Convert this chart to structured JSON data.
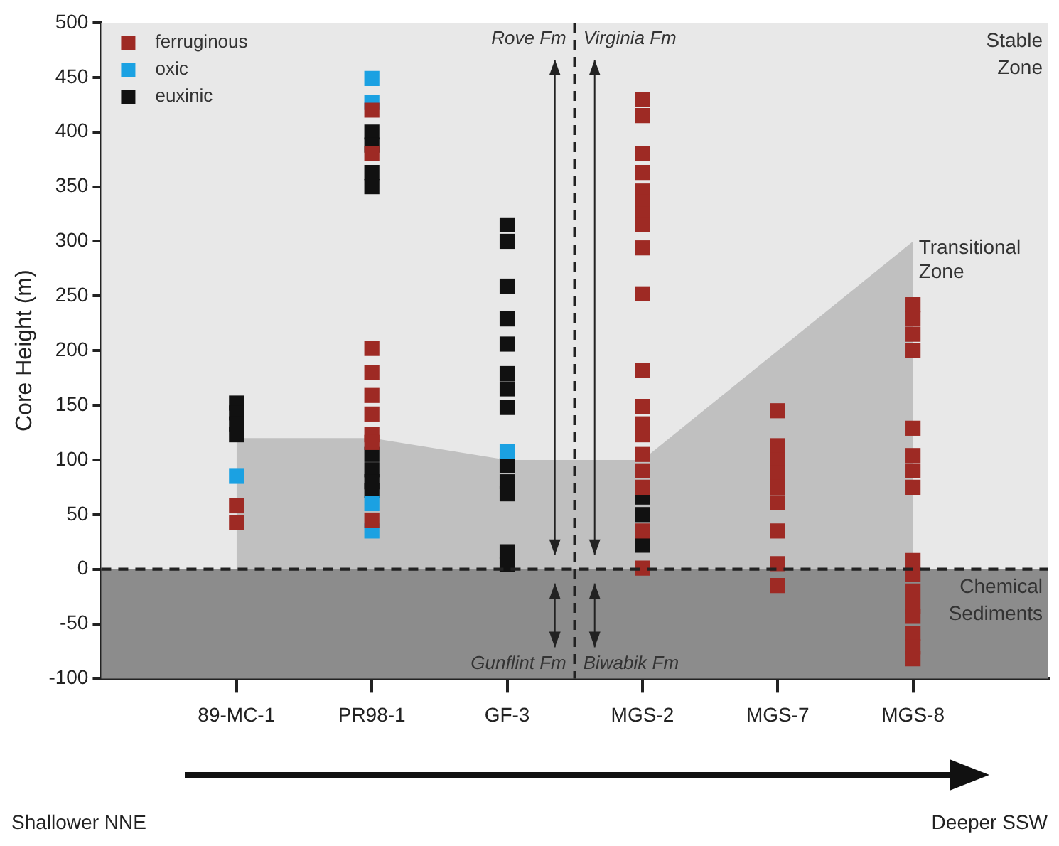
{
  "chart_data": {
    "type": "scatter",
    "ylabel": "Core Height (m)",
    "categories": [
      "89-MC-1",
      "PR98-1",
      "GF-3",
      "MGS-2",
      "MGS-7",
      "MGS-8"
    ],
    "ylim": [
      -100,
      500
    ],
    "yticks": [
      -100,
      -50,
      0,
      50,
      100,
      150,
      200,
      250,
      300,
      350,
      400,
      450,
      500
    ],
    "grid": false,
    "legend": "top left",
    "series": [
      {
        "name": "Transitional Zone",
        "type": "area",
        "color": "#c0c0c0",
        "values": [
          120,
          120,
          100,
          100,
          200,
          300
        ]
      },
      {
        "name": "ferruginous",
        "color": "#9e2a24",
        "marker": "square",
        "x": [
          "89-MC-1",
          "89-MC-1",
          "PR98-1",
          "PR98-1",
          "PR98-1",
          "PR98-1",
          "PR98-1",
          "PR98-1",
          "PR98-1",
          "PR98-1",
          "PR98-1",
          "MGS-2",
          "MGS-2",
          "MGS-2",
          "MGS-2",
          "MGS-2",
          "MGS-2",
          "MGS-2",
          "MGS-2",
          "MGS-2",
          "MGS-2",
          "MGS-2",
          "MGS-2",
          "MGS-2",
          "MGS-2",
          "MGS-2",
          "MGS-2",
          "MGS-2",
          "MGS-2",
          "MGS-2",
          "MGS-7",
          "MGS-7",
          "MGS-7",
          "MGS-7",
          "MGS-7",
          "MGS-7",
          "MGS-7",
          "MGS-7",
          "MGS-7",
          "MGS-8",
          "MGS-8",
          "MGS-8",
          "MGS-8",
          "MGS-8",
          "MGS-8",
          "MGS-8",
          "MGS-8",
          "MGS-8",
          "MGS-8",
          "MGS-8",
          "MGS-8",
          "MGS-8",
          "MGS-8",
          "MGS-8",
          "MGS-8"
        ],
        "values": [
          58,
          43,
          420,
          380,
          202,
          180,
          159,
          142,
          123,
          116,
          45,
          430,
          415,
          380,
          363,
          346,
          336,
          325,
          315,
          294,
          252,
          182,
          149,
          133,
          123,
          105,
          90,
          75,
          35,
          1,
          145,
          113,
          100,
          88,
          75,
          61,
          35,
          5,
          -15,
          242,
          229,
          215,
          200,
          129,
          104,
          90,
          75,
          8,
          -5,
          -20,
          -34,
          -43,
          -59,
          -71,
          -82
        ]
      },
      {
        "name": "oxic",
        "color": "#1ba1e2",
        "marker": "square",
        "x": [
          "89-MC-1",
          "PR98-1",
          "PR98-1",
          "PR98-1",
          "PR98-1",
          "PR98-1",
          "GF-3"
        ],
        "values": [
          85,
          449,
          427,
          null,
          60,
          35,
          108
        ]
      },
      {
        "name": "euxinic",
        "color": "#111111",
        "marker": "square",
        "x": [
          "89-MC-1",
          "89-MC-1",
          "89-MC-1",
          "89-MC-1",
          "PR98-1",
          "PR98-1",
          "PR98-1",
          "PR98-1",
          "PR98-1",
          "PR98-1",
          "PR98-1",
          "PR98-1",
          "PR98-1",
          "GF-3",
          "GF-3",
          "GF-3",
          "GF-3",
          "GF-3",
          "GF-3",
          "GF-3",
          "GF-3",
          "GF-3",
          "GF-3",
          "GF-3",
          "GF-3",
          "GF-3",
          "MGS-2",
          "MGS-2",
          "MGS-2"
        ],
        "values": [
          152,
          143,
          133,
          123,
          400,
          388,
          null,
          363,
          350,
          105,
          91,
          80,
          72,
          315,
          300,
          259,
          229,
          206,
          179,
          165,
          148,
          95,
          80,
          69,
          16,
          4,
          66,
          50,
          22
        ]
      }
    ],
    "bands": [
      {
        "axis": "y",
        "from": 0,
        "to": 500,
        "label": "Stable Zone",
        "color": "#e8e8e8"
      },
      {
        "axis": "y",
        "from": -100,
        "to": 0,
        "label": "Chemical Sediments",
        "color": "#8c8c8c"
      }
    ],
    "ref_lines": [
      {
        "axis": "y",
        "value": 0,
        "line_style": "dashed"
      }
    ],
    "annotations": [
      "Rove Fm",
      "Virginia Fm",
      "Gunflint Fm",
      "Biwabik Fm",
      "Shallower NNE",
      "Deeper SSW"
    ]
  }
}
